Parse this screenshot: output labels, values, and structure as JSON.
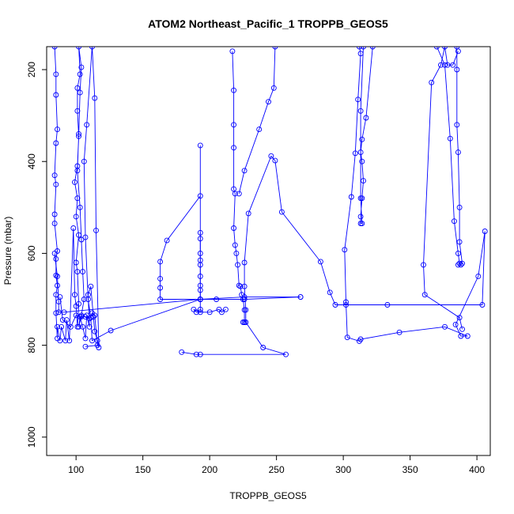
{
  "chart_data": {
    "type": "line",
    "title": "ATOM2 Northeast_Pacific_1 TROPPB_GEOS5",
    "xlabel": "TROPPB_GEOS5",
    "ylabel": "Pressure (mbar)",
    "xlim": [
      78,
      410
    ],
    "ylim": [
      1040,
      150
    ],
    "y_reversed": true,
    "grid": false,
    "x_ticks": [
      100,
      150,
      200,
      250,
      300,
      350,
      400
    ],
    "y_ticks": [
      200,
      400,
      600,
      800,
      1000
    ],
    "series": [
      {
        "color": "#0000ff",
        "points": [
          [
            84,
            150
          ],
          [
            85,
            210
          ],
          [
            85,
            255
          ],
          [
            86,
            330
          ],
          [
            85,
            360
          ],
          [
            84,
            430
          ],
          [
            85,
            450
          ],
          [
            84,
            515
          ],
          [
            84,
            535
          ],
          [
            86,
            595
          ],
          [
            85,
            612
          ],
          [
            85,
            648
          ],
          [
            86,
            670
          ],
          [
            85,
            690
          ],
          [
            85,
            730
          ],
          [
            86,
            785
          ],
          [
            86,
            760
          ],
          [
            88,
            790
          ],
          [
            89,
            760
          ],
          [
            92,
            790
          ],
          [
            93,
            745
          ],
          [
            95,
            790
          ],
          [
            98,
            545
          ],
          [
            99,
            690
          ],
          [
            100,
            715
          ],
          [
            101,
            760
          ],
          [
            102,
            710
          ],
          [
            101,
            640
          ],
          [
            100,
            620
          ],
          [
            102,
            560
          ],
          [
            100,
            520
          ],
          [
            101,
            480
          ],
          [
            99,
            445
          ],
          [
            101,
            410
          ],
          [
            102,
            345
          ],
          [
            101,
            290
          ],
          [
            101,
            240
          ],
          [
            103,
            210
          ],
          [
            102,
            150
          ],
          [
            104,
            195
          ],
          [
            103,
            250
          ],
          [
            102,
            340
          ],
          [
            101,
            420
          ],
          [
            103,
            500
          ],
          [
            104,
            570
          ],
          [
            105,
            640
          ],
          [
            106,
            700
          ],
          [
            104,
            735
          ],
          [
            102,
            760
          ],
          [
            103,
            738
          ],
          [
            105,
            760
          ],
          [
            107,
            785
          ],
          [
            108,
            735
          ],
          [
            110,
            760
          ],
          [
            109,
            690
          ],
          [
            111,
            672
          ],
          [
            113,
            738
          ],
          [
            114,
            770
          ],
          [
            116,
            790
          ],
          [
            117,
            805
          ],
          [
            115,
            550
          ],
          [
            114,
            262
          ],
          [
            112,
            150
          ],
          [
            108,
            320
          ],
          [
            106,
            400
          ],
          [
            107,
            565
          ],
          [
            109,
            700
          ],
          [
            111,
            740
          ],
          [
            112,
            790
          ],
          [
            126,
            768
          ],
          [
            193,
            700
          ],
          [
            226,
            695
          ],
          [
            268,
            695
          ]
        ]
      },
      {
        "color": "#0000ff",
        "points": [
          [
            88,
            695
          ],
          [
            90,
            745
          ],
          [
            96,
            760
          ],
          [
            100,
            735
          ],
          [
            104,
            738
          ],
          [
            107,
            738
          ],
          [
            110,
            742
          ],
          [
            112,
            730
          ],
          [
            114,
            735
          ],
          [
            116,
            800
          ],
          [
            107,
            803
          ]
        ]
      },
      {
        "color": "#0000ff",
        "points": [
          [
            84,
            600
          ],
          [
            86,
            650
          ],
          [
            87,
            705
          ],
          [
            87,
            728
          ],
          [
            91,
            728
          ],
          [
            193,
            700
          ],
          [
            193,
            365
          ],
          [
            193,
            475
          ],
          [
            168,
            572
          ],
          [
            163,
            618
          ],
          [
            163,
            655
          ],
          [
            163,
            675
          ],
          [
            163,
            700
          ],
          [
            193,
            700
          ],
          [
            205,
            700
          ],
          [
            226,
            700
          ],
          [
            268,
            695
          ]
        ]
      },
      {
        "color": "#0000ff",
        "points": [
          [
            193,
            555
          ],
          [
            193,
            568
          ],
          [
            193,
            600
          ],
          [
            193,
            615
          ],
          [
            193,
            625
          ],
          [
            193,
            650
          ],
          [
            193,
            670
          ],
          [
            193,
            680
          ],
          [
            193,
            700
          ],
          [
            193,
            722
          ],
          [
            193,
            728
          ],
          [
            188,
            722
          ],
          [
            190,
            728
          ],
          [
            200,
            728
          ],
          [
            207,
            722
          ],
          [
            209,
            728
          ],
          [
            212,
            722
          ]
        ]
      },
      {
        "color": "#0000ff",
        "points": [
          [
            179,
            815
          ],
          [
            190,
            820
          ],
          [
            193,
            820
          ],
          [
            257,
            820
          ],
          [
            240,
            805
          ],
          [
            227,
            750
          ],
          [
            227,
            723
          ],
          [
            226,
            672
          ],
          [
            226,
            620
          ],
          [
            229,
            513
          ],
          [
            246,
            388
          ],
          [
            249,
            398
          ],
          [
            254,
            510
          ],
          [
            283,
            618
          ],
          [
            290,
            685
          ],
          [
            294,
            712
          ],
          [
            302,
            712
          ],
          [
            333,
            712
          ],
          [
            404,
            712
          ],
          [
            406,
            552
          ],
          [
            401,
            650
          ],
          [
            384,
            755
          ],
          [
            388,
            780
          ],
          [
            393,
            780
          ],
          [
            376,
            760
          ],
          [
            342,
            772
          ],
          [
            313,
            787
          ],
          [
            312,
            791
          ],
          [
            303,
            783
          ],
          [
            302,
            706
          ],
          [
            301,
            592
          ],
          [
            306,
            477
          ],
          [
            309,
            382
          ],
          [
            311,
            265
          ],
          [
            313,
            165
          ],
          [
            312,
            150
          ]
        ]
      },
      {
        "color": "#0000ff",
        "points": [
          [
            217,
            160
          ],
          [
            218,
            245
          ],
          [
            218,
            320
          ],
          [
            218,
            370
          ],
          [
            218,
            460
          ],
          [
            219,
            470
          ],
          [
            218,
            545
          ],
          [
            219,
            582
          ],
          [
            220,
            600
          ],
          [
            221,
            625
          ],
          [
            222,
            670
          ],
          [
            223,
            672
          ],
          [
            224,
            690
          ],
          [
            225,
            700
          ],
          [
            226,
            723
          ],
          [
            226,
            750
          ],
          [
            225,
            750
          ]
        ]
      },
      {
        "color": "#0000ff",
        "points": [
          [
            322,
            150
          ],
          [
            317,
            305
          ],
          [
            314,
            352
          ],
          [
            313,
            380
          ],
          [
            314,
            400
          ],
          [
            315,
            442
          ],
          [
            314,
            480
          ],
          [
            313,
            520
          ],
          [
            313,
            535
          ],
          [
            314,
            535
          ],
          [
            313,
            480
          ],
          [
            313,
            290
          ],
          [
            315,
            150
          ]
        ]
      },
      {
        "color": "#0000ff",
        "points": [
          [
            249,
            150
          ],
          [
            248,
            240
          ],
          [
            244,
            270
          ],
          [
            237,
            330
          ],
          [
            226,
            420
          ],
          [
            222,
            470
          ]
        ]
      },
      {
        "color": "#0000ff",
        "points": [
          [
            386,
            160
          ],
          [
            382,
            190
          ],
          [
            378,
            190
          ],
          [
            376,
            150
          ],
          [
            373,
            190
          ],
          [
            366,
            228
          ],
          [
            360,
            625
          ],
          [
            361,
            690
          ],
          [
            387,
            740
          ],
          [
            389,
            765
          ]
        ]
      },
      {
        "color": "#0000ff",
        "points": [
          [
            370,
            150
          ],
          [
            376,
            190
          ],
          [
            380,
            350
          ],
          [
            383,
            530
          ],
          [
            386,
            600
          ],
          [
            387,
            622
          ],
          [
            389,
            622
          ],
          [
            387,
            575
          ],
          [
            387,
            500
          ],
          [
            386,
            380
          ],
          [
            385,
            320
          ],
          [
            385,
            200
          ],
          [
            385,
            150
          ]
        ]
      },
      {
        "color": "#0000ff",
        "points": [
          [
            388,
            625
          ],
          [
            386,
            625
          ]
        ]
      }
    ]
  }
}
